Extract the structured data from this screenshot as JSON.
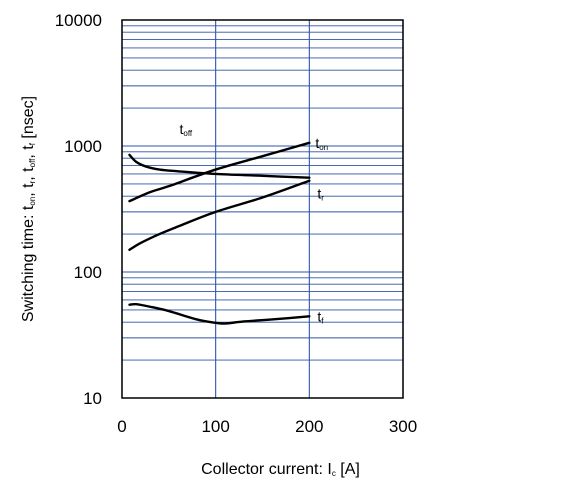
{
  "chart_data": {
    "type": "line",
    "xlabel_main": "Collector current: I",
    "xlabel_sub": "c",
    "xlabel_unit": " [A]",
    "ylabel_parts": [
      {
        "t": "Switching time: t",
        "s": false
      },
      {
        "t": "on",
        "s": true
      },
      {
        "t": ", t",
        "s": false
      },
      {
        "t": "r",
        "s": true
      },
      {
        "t": ", t",
        "s": false
      },
      {
        "t": "off",
        "s": true
      },
      {
        "t": ", t",
        "s": false
      },
      {
        "t": "f",
        "s": true
      },
      {
        "t": " [nsec]",
        "s": false
      }
    ],
    "xlim": [
      0,
      300
    ],
    "ylim": [
      10,
      10000
    ],
    "yscale": "log",
    "x_ticks": [
      0,
      100,
      200,
      300
    ],
    "x_tick_labels": [
      "0",
      "100",
      "200",
      "300"
    ],
    "y_ticks": [
      10,
      100,
      1000,
      10000
    ],
    "y_tick_labels": [
      "10",
      "100",
      "1000",
      "10000"
    ],
    "grid": true,
    "series": [
      {
        "name_main": "t",
        "name_sub": "on",
        "label_at": "end",
        "points": [
          [
            8,
            365
          ],
          [
            30,
            430
          ],
          [
            50,
            480
          ],
          [
            100,
            650
          ],
          [
            150,
            830
          ],
          [
            200,
            1060
          ]
        ]
      },
      {
        "name_main": "t",
        "name_sub": "off",
        "label_at": "upper-left",
        "points": [
          [
            8,
            850
          ],
          [
            15,
            750
          ],
          [
            25,
            690
          ],
          [
            40,
            650
          ],
          [
            60,
            630
          ],
          [
            100,
            600
          ],
          [
            150,
            580
          ],
          [
            200,
            560
          ]
        ]
      },
      {
        "name_main": "t",
        "name_sub": "r",
        "label_at": "end",
        "points": [
          [
            8,
            150
          ],
          [
            20,
            170
          ],
          [
            40,
            200
          ],
          [
            60,
            230
          ],
          [
            100,
            300
          ],
          [
            150,
            390
          ],
          [
            200,
            530
          ]
        ]
      },
      {
        "name_main": "t",
        "name_sub": "f",
        "label_at": "end",
        "points": [
          [
            8,
            55
          ],
          [
            15,
            55.5
          ],
          [
            30,
            53
          ],
          [
            50,
            49
          ],
          [
            80,
            42
          ],
          [
            100,
            39.5
          ],
          [
            110,
            39
          ],
          [
            130,
            40.5
          ],
          [
            160,
            42
          ],
          [
            200,
            44.5
          ]
        ]
      }
    ]
  }
}
